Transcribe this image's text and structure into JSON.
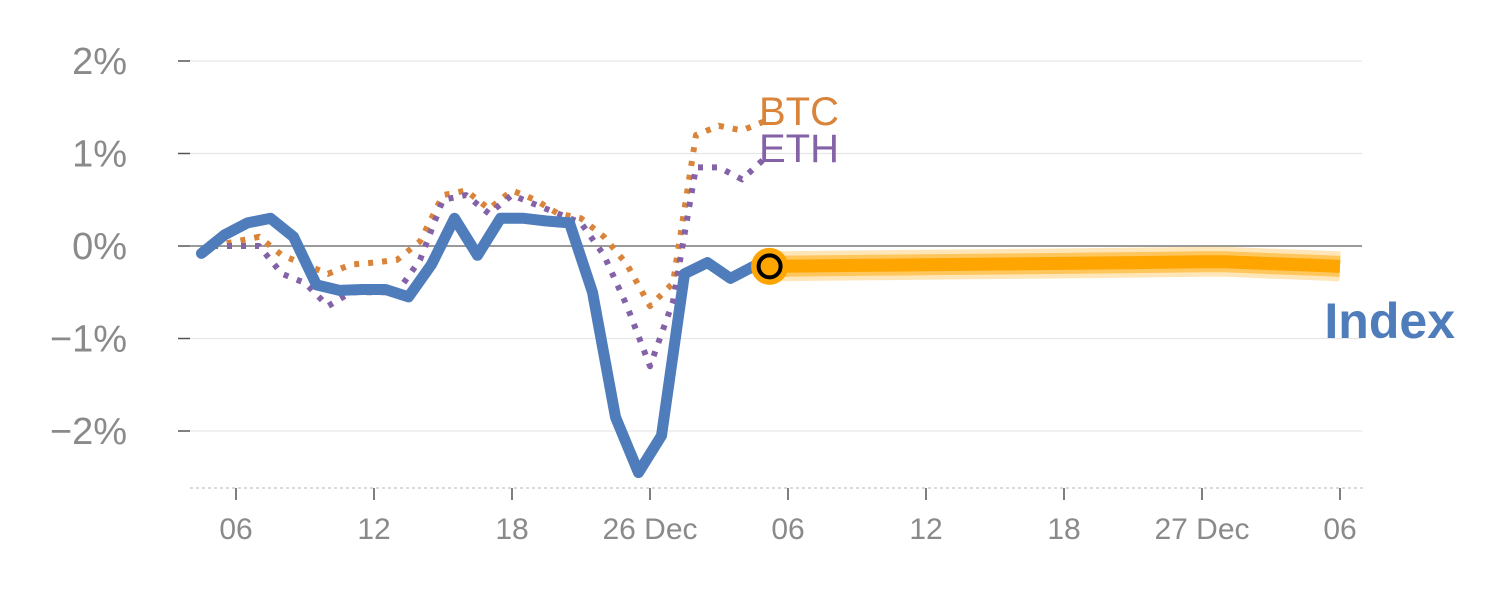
{
  "chart_data": {
    "type": "line",
    "title": "",
    "xlabel": "",
    "ylabel": "",
    "y_unit": "%",
    "ylim": [
      -2.6,
      2.15
    ],
    "y_ticks": [
      {
        "value": 2,
        "label": "2%"
      },
      {
        "value": 1,
        "label": "1%"
      },
      {
        "value": 0,
        "label": "0%"
      },
      {
        "value": -1,
        "label": "−1%"
      },
      {
        "value": -2,
        "label": "−2%"
      }
    ],
    "x_ticks": [
      {
        "x": 6,
        "label": "06"
      },
      {
        "x": 12,
        "label": "12"
      },
      {
        "x": 18,
        "label": "18"
      },
      {
        "x": 24,
        "label": "26 Dec"
      },
      {
        "x": 30,
        "label": "06"
      },
      {
        "x": 36,
        "label": "12"
      },
      {
        "x": 42,
        "label": "18"
      },
      {
        "x": 48,
        "label": "27 Dec"
      },
      {
        "x": 54,
        "label": "06"
      }
    ],
    "xlim": [
      2.5,
      55
    ],
    "grid": true,
    "zero_line": true,
    "series": [
      {
        "name": "BTC",
        "style": "dotted",
        "color": "#d9843a",
        "label_position": "end",
        "x": [
          5,
          6,
          7,
          8,
          9,
          10,
          11,
          12,
          13,
          14,
          15,
          16,
          17,
          18,
          19,
          20,
          21,
          22,
          23,
          24,
          25,
          26,
          27,
          28,
          29
        ],
        "y": [
          0.0,
          0.05,
          0.1,
          -0.1,
          -0.2,
          -0.3,
          -0.2,
          -0.18,
          -0.15,
          0.05,
          0.55,
          0.6,
          0.4,
          0.6,
          0.5,
          0.35,
          0.3,
          0.1,
          -0.2,
          -0.65,
          -0.4,
          1.2,
          1.3,
          1.25,
          1.35
        ]
      },
      {
        "name": "ETH",
        "style": "dotted",
        "color": "#8462a8",
        "label_position": "end",
        "x": [
          5,
          6,
          7,
          8,
          9,
          10,
          11,
          12,
          13,
          14,
          15,
          16,
          17,
          18,
          19,
          20,
          21,
          22,
          23,
          24,
          25,
          26,
          27,
          28,
          29
        ],
        "y": [
          0.0,
          0.0,
          0.0,
          -0.3,
          -0.4,
          -0.65,
          -0.5,
          -0.5,
          -0.5,
          -0.15,
          0.5,
          0.55,
          0.35,
          0.55,
          0.45,
          0.35,
          0.25,
          -0.1,
          -0.65,
          -1.3,
          -0.6,
          0.85,
          0.85,
          0.72,
          0.95
        ]
      },
      {
        "name": "Index",
        "style": "solid",
        "color": "#4f7cba",
        "label_position": "right",
        "x": [
          4.5,
          5.5,
          6.5,
          7.5,
          8.5,
          9.5,
          10.5,
          11.5,
          12.5,
          13.5,
          14.5,
          15.5,
          16.5,
          17.5,
          18.5,
          19.5,
          20.5,
          21.5,
          22.5,
          23.5,
          24.5,
          25.5,
          26.5,
          27.5,
          28.5,
          29.2
        ],
        "y": [
          -0.08,
          0.12,
          0.25,
          0.3,
          0.1,
          -0.42,
          -0.48,
          -0.47,
          -0.47,
          -0.55,
          -0.2,
          0.3,
          -0.1,
          0.3,
          0.3,
          0.27,
          0.25,
          -0.5,
          -1.85,
          -2.45,
          -2.05,
          -0.3,
          -0.18,
          -0.35,
          -0.22,
          -0.22
        ]
      },
      {
        "name": "Index projection",
        "style": "band",
        "color": "#ffa500",
        "x": [
          29.2,
          33,
          37,
          41,
          45,
          48,
          49,
          51,
          53,
          54
        ],
        "y": [
          -0.22,
          -0.21,
          -0.2,
          -0.19,
          -0.18,
          -0.17,
          -0.17,
          -0.19,
          -0.21,
          -0.22
        ]
      }
    ],
    "marker": {
      "x": 29.2,
      "y": -0.22,
      "fill": "#ffa500",
      "stroke": "#000000"
    }
  }
}
